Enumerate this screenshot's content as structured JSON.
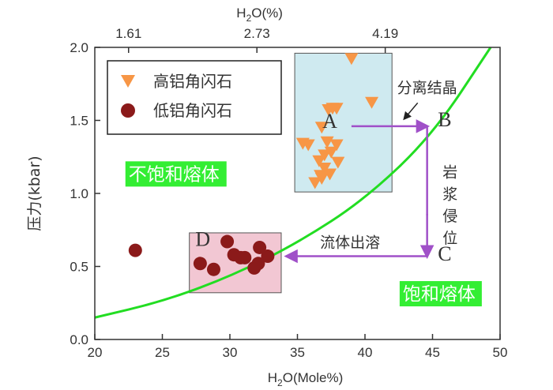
{
  "chart_data": {
    "type": "scatter",
    "x_axis": {
      "label_prefix": "H",
      "label_sub": "2",
      "label_suffix": "O(Mole%)",
      "range": [
        20,
        50
      ],
      "ticks": [
        20,
        25,
        30,
        35,
        40,
        45,
        50
      ]
    },
    "top_axis": {
      "label_prefix": "H",
      "label_sub": "2",
      "label_suffix": "O(%)",
      "ticks": [
        {
          "x": 22.5,
          "label": "1.61"
        },
        {
          "x": 32.0,
          "label": "2.73"
        },
        {
          "x": 41.5,
          "label": "4.19"
        }
      ]
    },
    "y_axis": {
      "label": "压力(kbar)",
      "range": [
        0.0,
        2.0
      ],
      "ticks": [
        0.0,
        0.5,
        1.0,
        1.5,
        2.0
      ],
      "tick_labels": [
        "0.0",
        "0.5",
        "1.0",
        "1.5",
        "2.0"
      ]
    },
    "legend": {
      "placement": "top-left",
      "entries": [
        {
          "label": "高铝角闪石",
          "marker": "triangle",
          "color": "#f79646"
        },
        {
          "label": "低铝角闪石",
          "marker": "circle",
          "color": "#8b1a1a"
        }
      ]
    },
    "series": [
      {
        "name": "高铝角闪石",
        "marker": "triangle",
        "color": "#f79646",
        "points": [
          [
            39.0,
            1.92
          ],
          [
            37.6,
            1.58
          ],
          [
            37.9,
            1.58
          ],
          [
            37.3,
            1.57
          ],
          [
            40.5,
            1.62
          ],
          [
            36.8,
            1.45
          ],
          [
            37.2,
            1.35
          ],
          [
            37.9,
            1.33
          ],
          [
            35.4,
            1.34
          ],
          [
            35.8,
            1.33
          ],
          [
            37.5,
            1.28
          ],
          [
            37.0,
            1.26
          ],
          [
            36.6,
            1.22
          ],
          [
            38.0,
            1.21
          ],
          [
            37.0,
            1.17
          ],
          [
            36.7,
            1.12
          ],
          [
            37.4,
            1.13
          ],
          [
            36.8,
            1.1
          ],
          [
            36.3,
            1.07
          ]
        ]
      },
      {
        "name": "低铝角闪石",
        "marker": "circle",
        "color": "#8b1a1a",
        "points": [
          [
            23.0,
            0.61
          ],
          [
            27.8,
            0.52
          ],
          [
            28.8,
            0.48
          ],
          [
            29.8,
            0.67
          ],
          [
            30.3,
            0.58
          ],
          [
            30.8,
            0.56
          ],
          [
            31.1,
            0.56
          ],
          [
            32.2,
            0.63
          ],
          [
            31.8,
            0.49
          ],
          [
            32.8,
            0.57
          ],
          [
            32.1,
            0.52
          ]
        ]
      }
    ],
    "curve": {
      "color": "#22dd22",
      "points": [
        [
          20,
          0.15
        ],
        [
          25,
          0.26
        ],
        [
          30,
          0.43
        ],
        [
          35,
          0.66
        ],
        [
          40,
          0.96
        ],
        [
          45,
          1.4
        ],
        [
          49.3,
          2.0
        ]
      ]
    },
    "boxes": [
      {
        "x": [
          34.8,
          42.0
        ],
        "y": [
          1.01,
          1.96
        ],
        "fill": "#cfeaf0"
      },
      {
        "x": [
          27.0,
          33.8
        ],
        "y": [
          0.32,
          0.73
        ],
        "fill": "#f2c7d3"
      }
    ],
    "region_labels": [
      {
        "text": "不饱和熔体",
        "x": 22.5,
        "y": 1.09
      },
      {
        "text": "饱和熔体",
        "x": 42.8,
        "y": 0.27
      }
    ],
    "points_labeled": [
      {
        "text": "A",
        "x": 37.4,
        "y": 1.45
      },
      {
        "text": "B",
        "x": 45.9,
        "y": 1.46
      },
      {
        "text": "C",
        "x": 45.9,
        "y": 0.54
      },
      {
        "text": "D",
        "x": 28.0,
        "y": 0.64
      }
    ],
    "annotations": [
      {
        "text": "分离结晶",
        "x": 44.6,
        "y": 1.69
      },
      {
        "text": "岩",
        "x": 46.3,
        "y": 1.11
      },
      {
        "text": "浆",
        "x": 46.3,
        "y": 0.96
      },
      {
        "text": "侵",
        "x": 46.3,
        "y": 0.81
      },
      {
        "text": "位",
        "x": 46.3,
        "y": 0.66
      },
      {
        "text": "流体出溶",
        "x": 38.9,
        "y": 0.63
      }
    ],
    "path_arrows": {
      "color": "#a050c8",
      "segments": [
        {
          "from": [
            39.0,
            1.46
          ],
          "to": [
            44.6,
            1.46
          ]
        },
        {
          "from": [
            44.6,
            1.46
          ],
          "to": [
            44.6,
            0.85
          ]
        },
        {
          "from": [
            44.6,
            0.86
          ],
          "to": [
            44.6,
            0.57
          ]
        },
        {
          "from": [
            44.6,
            0.57
          ],
          "to": [
            34.2,
            0.57
          ]
        }
      ]
    },
    "pointer_arrow": {
      "from": [
        43.9,
        1.62
      ],
      "to": [
        42.9,
        1.51
      ]
    }
  }
}
